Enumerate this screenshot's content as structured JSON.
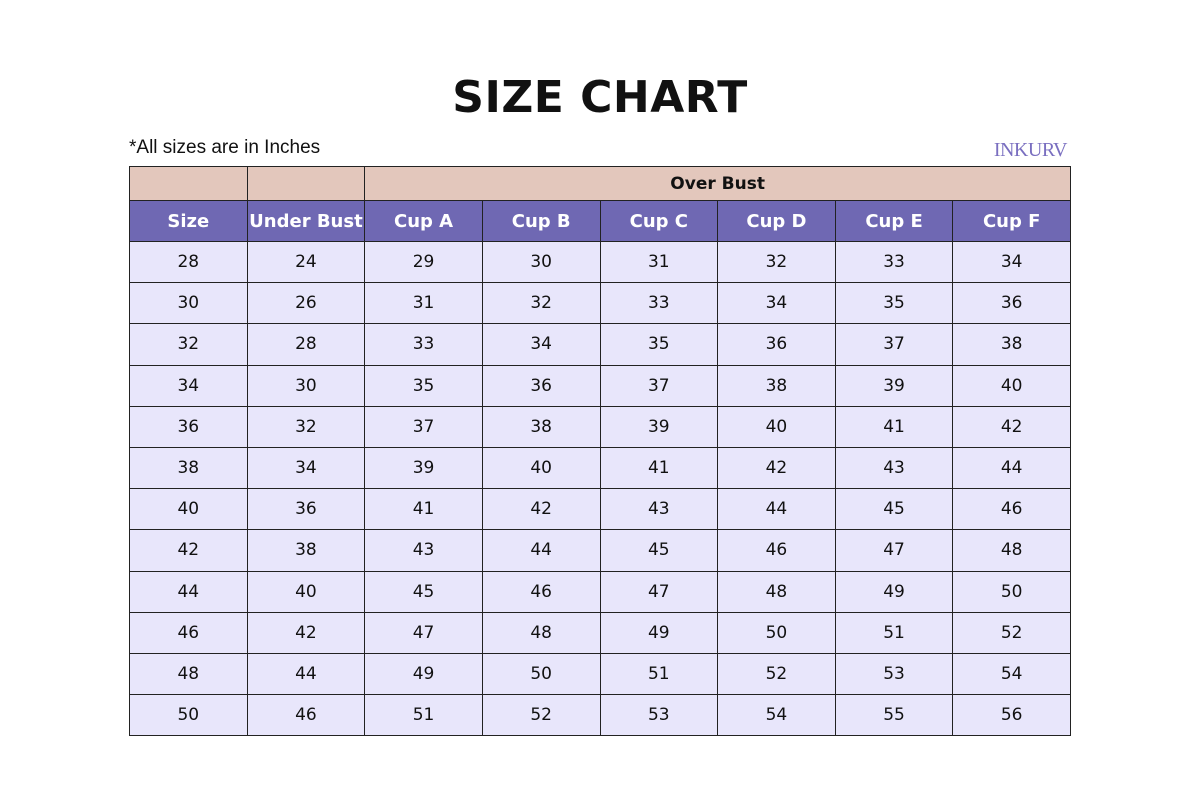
{
  "title": "SIZE CHART",
  "note": "*All sizes are in Inches",
  "logo": "INKURV",
  "colors": {
    "group_header": "#e3c7bc",
    "column_header": "#6f68b3",
    "row_bg": "#e8e6fb"
  },
  "table": {
    "group_header": "Over Bust",
    "columns": [
      "Size",
      "Under Bust",
      "Cup A",
      "Cup B",
      "Cup C",
      "Cup D",
      "Cup E",
      "Cup F"
    ],
    "rows": [
      [
        "28",
        "24",
        "29",
        "30",
        "31",
        "32",
        "33",
        "34"
      ],
      [
        "30",
        "26",
        "31",
        "32",
        "33",
        "34",
        "35",
        "36"
      ],
      [
        "32",
        "28",
        "33",
        "34",
        "35",
        "36",
        "37",
        "38"
      ],
      [
        "34",
        "30",
        "35",
        "36",
        "37",
        "38",
        "39",
        "40"
      ],
      [
        "36",
        "32",
        "37",
        "38",
        "39",
        "40",
        "41",
        "42"
      ],
      [
        "38",
        "34",
        "39",
        "40",
        "41",
        "42",
        "43",
        "44"
      ],
      [
        "40",
        "36",
        "41",
        "42",
        "43",
        "44",
        "45",
        "46"
      ],
      [
        "42",
        "38",
        "43",
        "44",
        "45",
        "46",
        "47",
        "48"
      ],
      [
        "44",
        "40",
        "45",
        "46",
        "47",
        "48",
        "49",
        "50"
      ],
      [
        "46",
        "42",
        "47",
        "48",
        "49",
        "50",
        "51",
        "52"
      ],
      [
        "48",
        "44",
        "49",
        "50",
        "51",
        "52",
        "53",
        "54"
      ],
      [
        "50",
        "46",
        "51",
        "52",
        "53",
        "54",
        "55",
        "56"
      ]
    ]
  }
}
